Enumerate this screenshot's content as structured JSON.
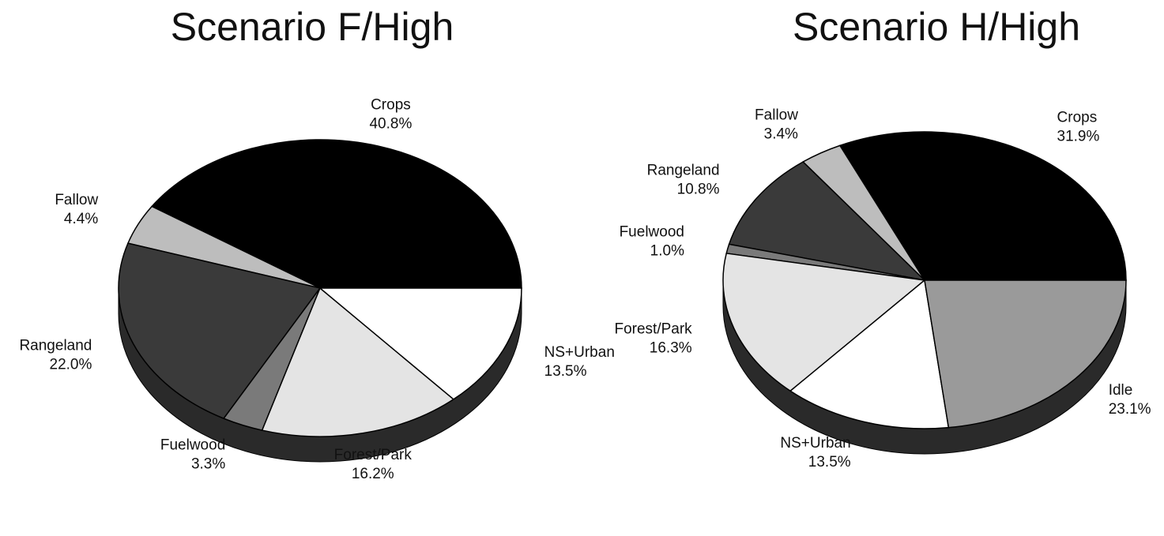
{
  "chart_data": [
    {
      "type": "pie",
      "title": "Scenario F/High",
      "categories": [
        "Crops",
        "Fallow",
        "Rangeland",
        "Fuelwood",
        "Forest/Park",
        "NS+Urban"
      ],
      "values": [
        40.8,
        4.4,
        22.0,
        3.3,
        16.2,
        13.5
      ],
      "value_labels": [
        "40.8%",
        "4.4%",
        "22.0%",
        "3.3%",
        "16.2%",
        "13.5%"
      ],
      "colors": [
        "#000000",
        "#bdbdbd",
        "#3a3a3a",
        "#7a7a7a",
        "#e4e4e4",
        "#ffffff"
      ]
    },
    {
      "type": "pie",
      "title": "Scenario H/High",
      "categories": [
        "Crops",
        "Fallow",
        "Rangeland",
        "Fuelwood",
        "Forest/Park",
        "NS+Urban",
        "Idle"
      ],
      "values": [
        31.9,
        3.4,
        10.8,
        1.0,
        16.3,
        13.5,
        23.1
      ],
      "value_labels": [
        "31.9%",
        "3.4%",
        "10.8%",
        "1.0%",
        "16.3%",
        "13.5%",
        "23.1%"
      ],
      "colors": [
        "#000000",
        "#bdbdbd",
        "#3a3a3a",
        "#7a7a7a",
        "#e4e4e4",
        "#ffffff",
        "#9a9a9a"
      ]
    }
  ]
}
